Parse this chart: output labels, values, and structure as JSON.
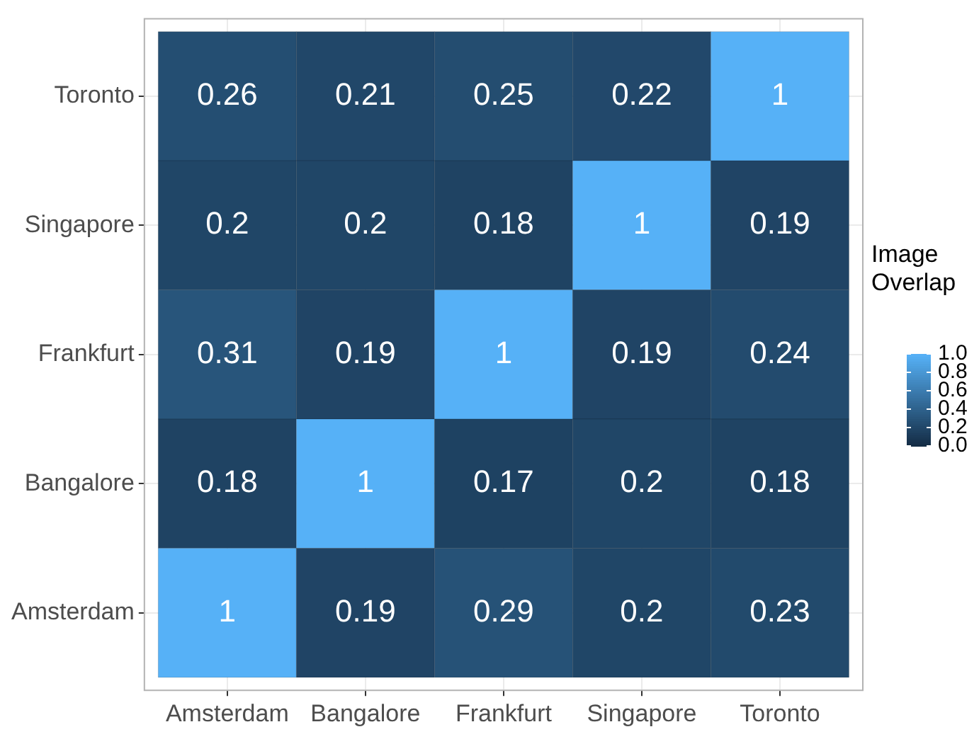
{
  "chart_data": {
    "type": "heatmap",
    "categories": [
      "Amsterdam",
      "Bangalore",
      "Frankfurt",
      "Singapore",
      "Toronto"
    ],
    "y_categories": [
      "Toronto",
      "Singapore",
      "Frankfurt",
      "Bangalore",
      "Amsterdam"
    ],
    "cells": [
      [
        0.26,
        0.21,
        0.25,
        0.22,
        1
      ],
      [
        0.2,
        0.2,
        0.18,
        1,
        0.19
      ],
      [
        0.31,
        0.19,
        1,
        0.19,
        0.24
      ],
      [
        0.18,
        1,
        0.17,
        0.2,
        0.18
      ],
      [
        1,
        0.19,
        0.29,
        0.2,
        0.23
      ]
    ],
    "clabel": "Image\nOverlap",
    "clim": [
      0,
      1
    ],
    "cticks": [
      {
        "value": 0,
        "label": "0.0"
      },
      {
        "value": 0.2,
        "label": "0.2"
      },
      {
        "value": 0.4,
        "label": "0.4"
      },
      {
        "value": 0.6,
        "label": "0.6"
      },
      {
        "value": 0.8,
        "label": "0.8"
      },
      {
        "value": 1,
        "label": "1.0"
      }
    ],
    "data_labels": true,
    "grid": true
  }
}
